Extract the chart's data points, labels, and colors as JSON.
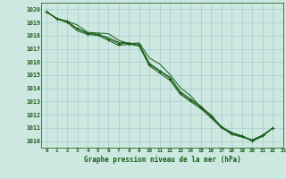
{
  "title": "Graphe pression niveau de la mer (hPa)",
  "bg_color": "#cce8e0",
  "grid_color": "#aacccc",
  "line_color": "#1a5c1a",
  "marker_color": "#1a5c1a",
  "xlim": [
    -0.5,
    23
  ],
  "ylim": [
    1009.5,
    1020.5
  ],
  "xticks": [
    0,
    1,
    2,
    3,
    4,
    5,
    6,
    7,
    8,
    9,
    10,
    11,
    12,
    13,
    14,
    15,
    16,
    17,
    18,
    19,
    20,
    21,
    22,
    23
  ],
  "yticks": [
    1010,
    1011,
    1012,
    1013,
    1014,
    1015,
    1016,
    1017,
    1018,
    1019,
    1020
  ],
  "series1_y": [
    1019.8,
    1019.3,
    1019.1,
    1018.8,
    1018.25,
    1018.2,
    1018.15,
    1017.65,
    1017.4,
    1017.45,
    1016.3,
    1015.85,
    1015.05,
    1014.05,
    1013.45,
    1012.55,
    1012.0,
    1011.05,
    1010.5,
    1010.3,
    1010.1,
    1010.45,
    1011.0,
    null
  ],
  "series2_y": [
    1019.8,
    1019.3,
    1019.05,
    1018.55,
    1018.2,
    1018.1,
    1017.85,
    1017.5,
    1017.45,
    1017.35,
    1015.9,
    1015.35,
    1014.85,
    1013.75,
    1013.2,
    1012.65,
    1011.9,
    1011.1,
    1010.65,
    1010.4,
    1010.05,
    1010.4,
    1011.0,
    null
  ],
  "series3_y": [
    1019.8,
    1019.25,
    1019.0,
    1018.35,
    1018.1,
    1018.0,
    1017.65,
    1017.25,
    1017.35,
    1017.2,
    1015.7,
    1015.15,
    1014.6,
    1013.55,
    1013.0,
    1012.45,
    1011.75,
    1011.0,
    1010.6,
    1010.35,
    1010.0,
    1010.35,
    1011.0,
    null
  ],
  "series_marked_y": [
    1019.8,
    1019.3,
    1019.05,
    1018.5,
    1018.15,
    1018.1,
    1017.75,
    1017.4,
    1017.4,
    1017.3,
    1015.8,
    1015.3,
    1014.75,
    1013.65,
    1013.1,
    1012.55,
    1011.85,
    1011.05,
    1010.6,
    1010.38,
    1010.05,
    1010.42,
    1011.0,
    null
  ],
  "x": [
    0,
    1,
    2,
    3,
    4,
    5,
    6,
    7,
    8,
    9,
    10,
    11,
    12,
    13,
    14,
    15,
    16,
    17,
    18,
    19,
    20,
    21,
    22,
    23
  ]
}
